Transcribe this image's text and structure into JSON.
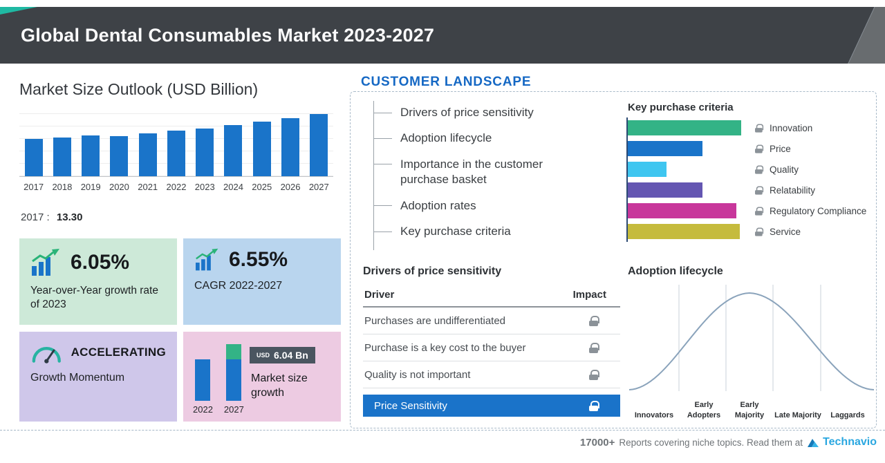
{
  "header": {
    "title": "Global Dental Consumables Market 2023-2027"
  },
  "market_outlook": {
    "title": "Market Size Outlook (USD Billion)",
    "base_label": "2017 :",
    "base_value": "13.30"
  },
  "stats": {
    "yoy": {
      "value": "6.05%",
      "label": "Year-over-Year growth rate of 2023"
    },
    "cagr": {
      "value": "6.55%",
      "label": "CAGR 2022-2027"
    },
    "momentum": {
      "value": "ACCELERATING",
      "label": "Growth Momentum"
    },
    "growth": {
      "badge_currency": "USD",
      "badge_value": "6.04 Bn",
      "label": "Market size growth"
    }
  },
  "customer_landscape": {
    "title": "CUSTOMER  LANDSCAPE",
    "items": [
      "Drivers of price sensitivity",
      "Adoption lifecycle",
      "Importance in the customer purchase basket",
      "Adoption rates",
      "Key purchase criteria"
    ],
    "key_purchase": {
      "title": "Key purchase criteria"
    },
    "drivers": {
      "title": "Drivers of price sensitivity",
      "columns": [
        "Driver",
        "Impact"
      ],
      "rows": [
        "Purchases are undifferentiated",
        "Purchase is a key cost to the buyer",
        "Quality is not important"
      ],
      "highlight": "Price Sensitivity"
    },
    "adoption": {
      "title": "Adoption lifecycle",
      "stages": [
        "Innovators",
        "Early Adopters",
        "Early Majority",
        "Late Majority",
        "Laggards"
      ]
    }
  },
  "footer": {
    "count": "17000+",
    "text": "Reports covering niche topics. Read them at",
    "brand": "Technavio"
  },
  "colors": {
    "header_bg": "#3e4247",
    "accent_teal": "#1fb9a3",
    "bar_blue": "#1a74c9",
    "card_green": "#cde9d8",
    "card_blue": "#b9d5ee",
    "card_purple": "#cfc7ea",
    "card_pink": "#edcbe2",
    "highlight_blue": "#1a73c9",
    "landscape_title_blue": "#1568c4",
    "brand_blue": "#2aa7e0"
  },
  "chart_data": [
    {
      "type": "bar",
      "title": "Market Size Outlook (USD Billion)",
      "categories": [
        "2017",
        "2018",
        "2019",
        "2020",
        "2021",
        "2022",
        "2023",
        "2024",
        "2025",
        "2026",
        "2027"
      ],
      "values": [
        13.3,
        13.85,
        14.45,
        14.2,
        15.3,
        16.17,
        17.15,
        18.3,
        19.5,
        20.8,
        22.21
      ],
      "ylabel": "USD Billion",
      "annotation": "2017 : 13.30",
      "bar_color": "#1a74c9",
      "grid": true,
      "legend": "none"
    },
    {
      "type": "bar",
      "orientation": "horizontal",
      "title": "Key purchase criteria",
      "categories": [
        "Innovation",
        "Price",
        "Quality",
        "Relatability",
        "Regulatory Compliance",
        "Service"
      ],
      "values": [
        100,
        66,
        34,
        66,
        96,
        99
      ],
      "value_unit": "relative bar length, % of max (unlabeled axis)",
      "colors": [
        "#33b386",
        "#1a74c9",
        "#3fc6f0",
        "#6456b2",
        "#c8379b",
        "#c5bb3d"
      ],
      "legend_position": "right"
    },
    {
      "type": "bar",
      "title": "Market size growth",
      "categories": [
        "2022",
        "2027"
      ],
      "values": [
        16.17,
        22.21
      ],
      "growth_label": "USD 6.04 Bn",
      "colors": {
        "base": "#1a74c9",
        "growth": "#33b386"
      }
    },
    {
      "type": "line",
      "title": "Adoption lifecycle",
      "shape": "bell curve (no numeric axis shown)",
      "categories": [
        "Innovators",
        "Early Adopters",
        "Early Majority",
        "Late Majority",
        "Laggards"
      ]
    }
  ]
}
